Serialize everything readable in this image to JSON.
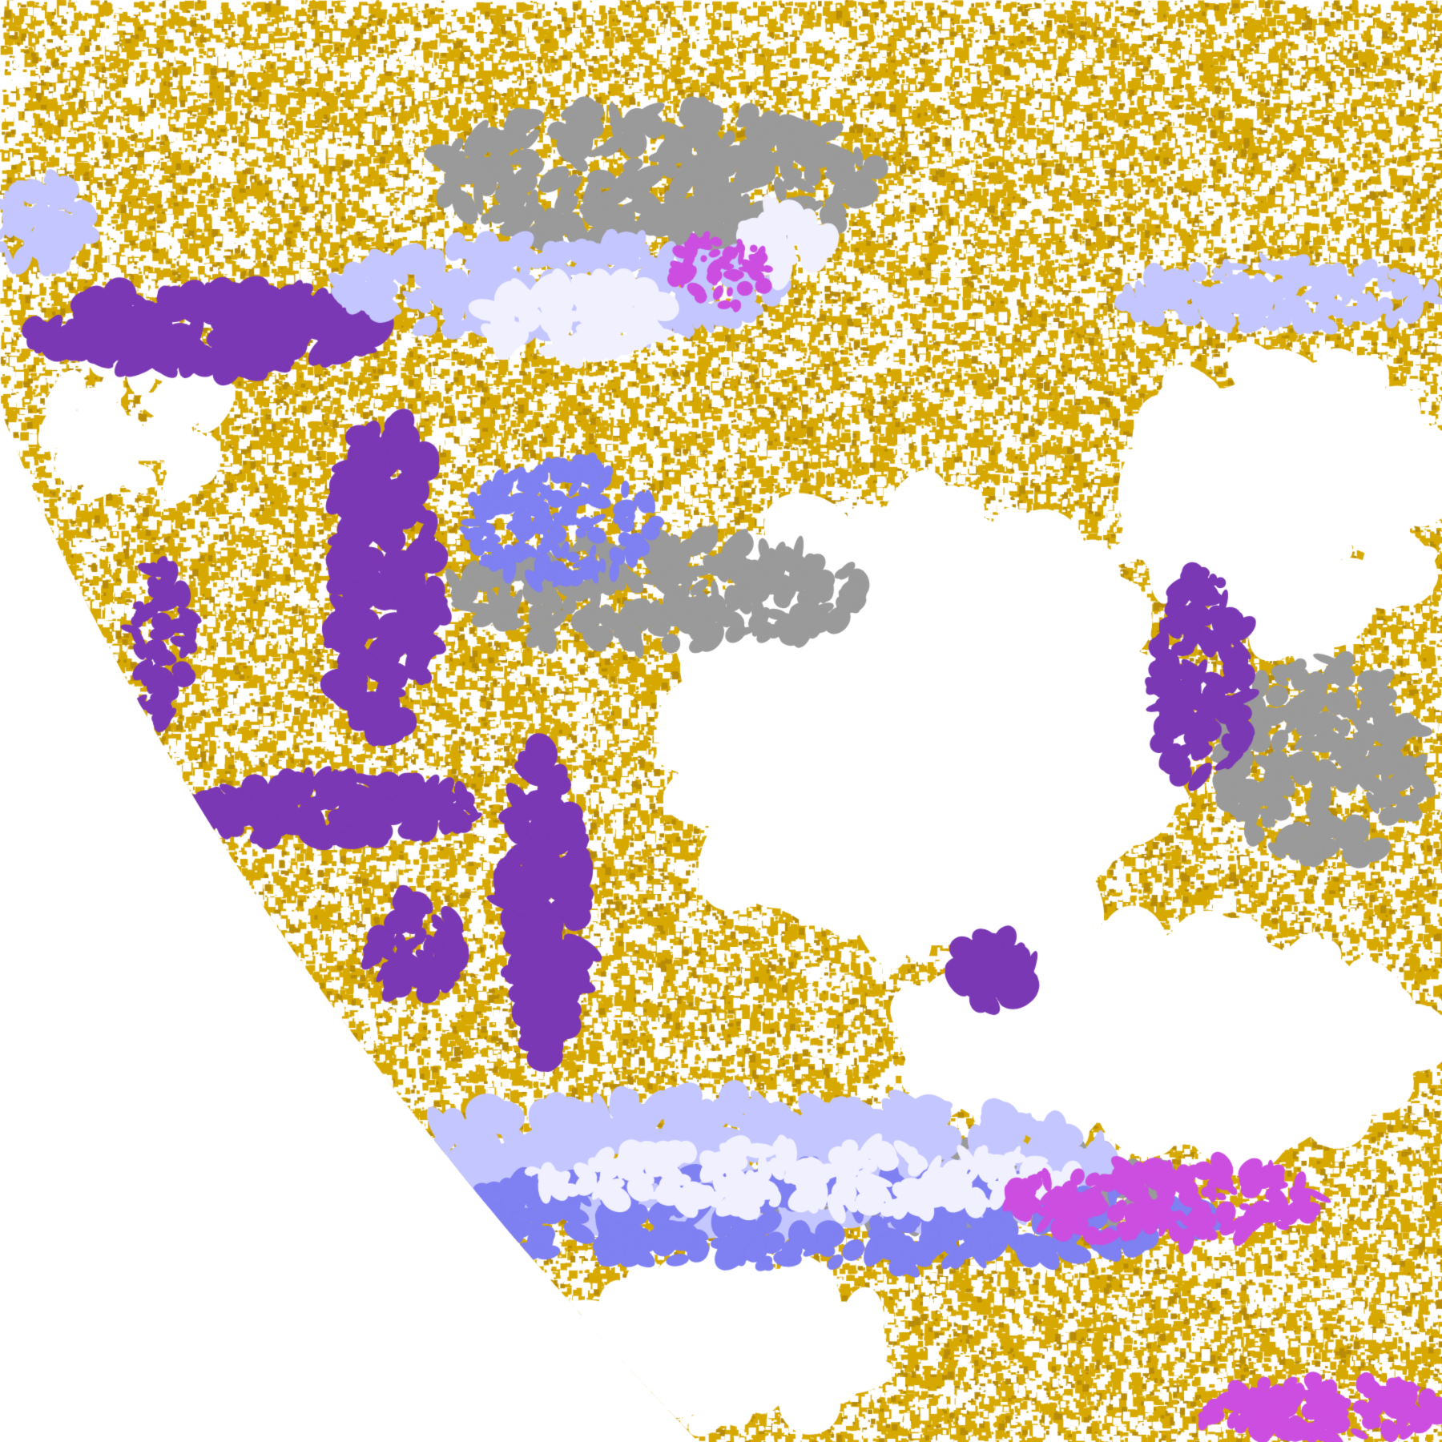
{
  "image": {
    "palette": {
      "gold": "#d7a900",
      "dark_gold": "#b88c08",
      "purple": "#7b38b4",
      "magenta": "#cc4ee0",
      "periwinkle": "#7f80f2",
      "lavender": "#c4c6ff",
      "pale_lavender": "#f0f0ff",
      "gray": "#9a9a9a",
      "background": "#ffffff"
    }
  }
}
